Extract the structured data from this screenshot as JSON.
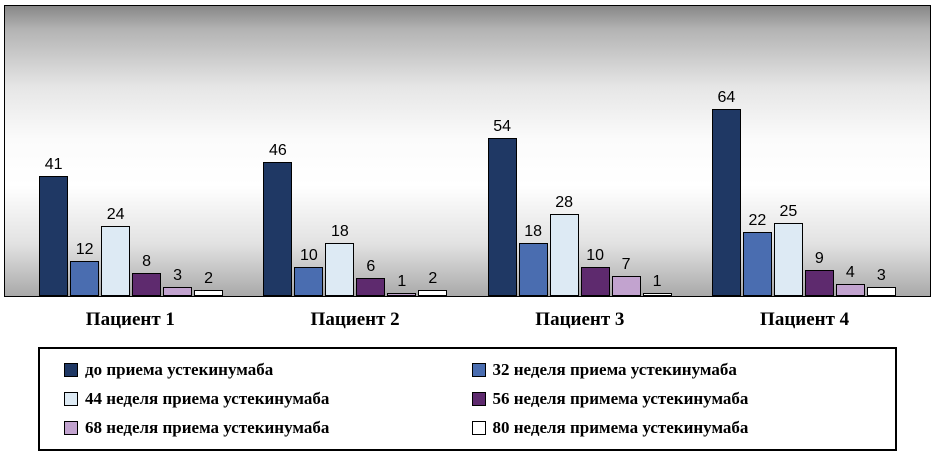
{
  "chart_data": {
    "type": "bar",
    "title": "",
    "xlabel": "",
    "ylabel": "",
    "grid": false,
    "legend_position": "bottom",
    "ylim": [
      0,
      98
    ],
    "categories": [
      "Пациент 1",
      "Пациент 2",
      "Пациент 3",
      "Пациент 4"
    ],
    "series": [
      {
        "name": "до приема устекинумаба",
        "color": "#1F3864",
        "values": [
          41,
          46,
          54,
          64
        ]
      },
      {
        "name": "32 неделя приема устекинумаба",
        "color": "#4A6DB0",
        "values": [
          12,
          10,
          18,
          22
        ]
      },
      {
        "name": "44 неделя приема устекинумаба",
        "color": "#DDEAF4",
        "values": [
          24,
          18,
          28,
          25
        ]
      },
      {
        "name": "56 неделя примема устекинумаба",
        "color": "#5E2A6E",
        "values": [
          8,
          6,
          10,
          9
        ]
      },
      {
        "name": "68 неделя приема устекинумаба",
        "color": "#C2A3CF",
        "values": [
          3,
          1,
          7,
          4
        ]
      },
      {
        "name": "80 неделя примема устекинумаба",
        "color": "#FFFFFF",
        "values": [
          2,
          2,
          1,
          3
        ]
      }
    ]
  }
}
